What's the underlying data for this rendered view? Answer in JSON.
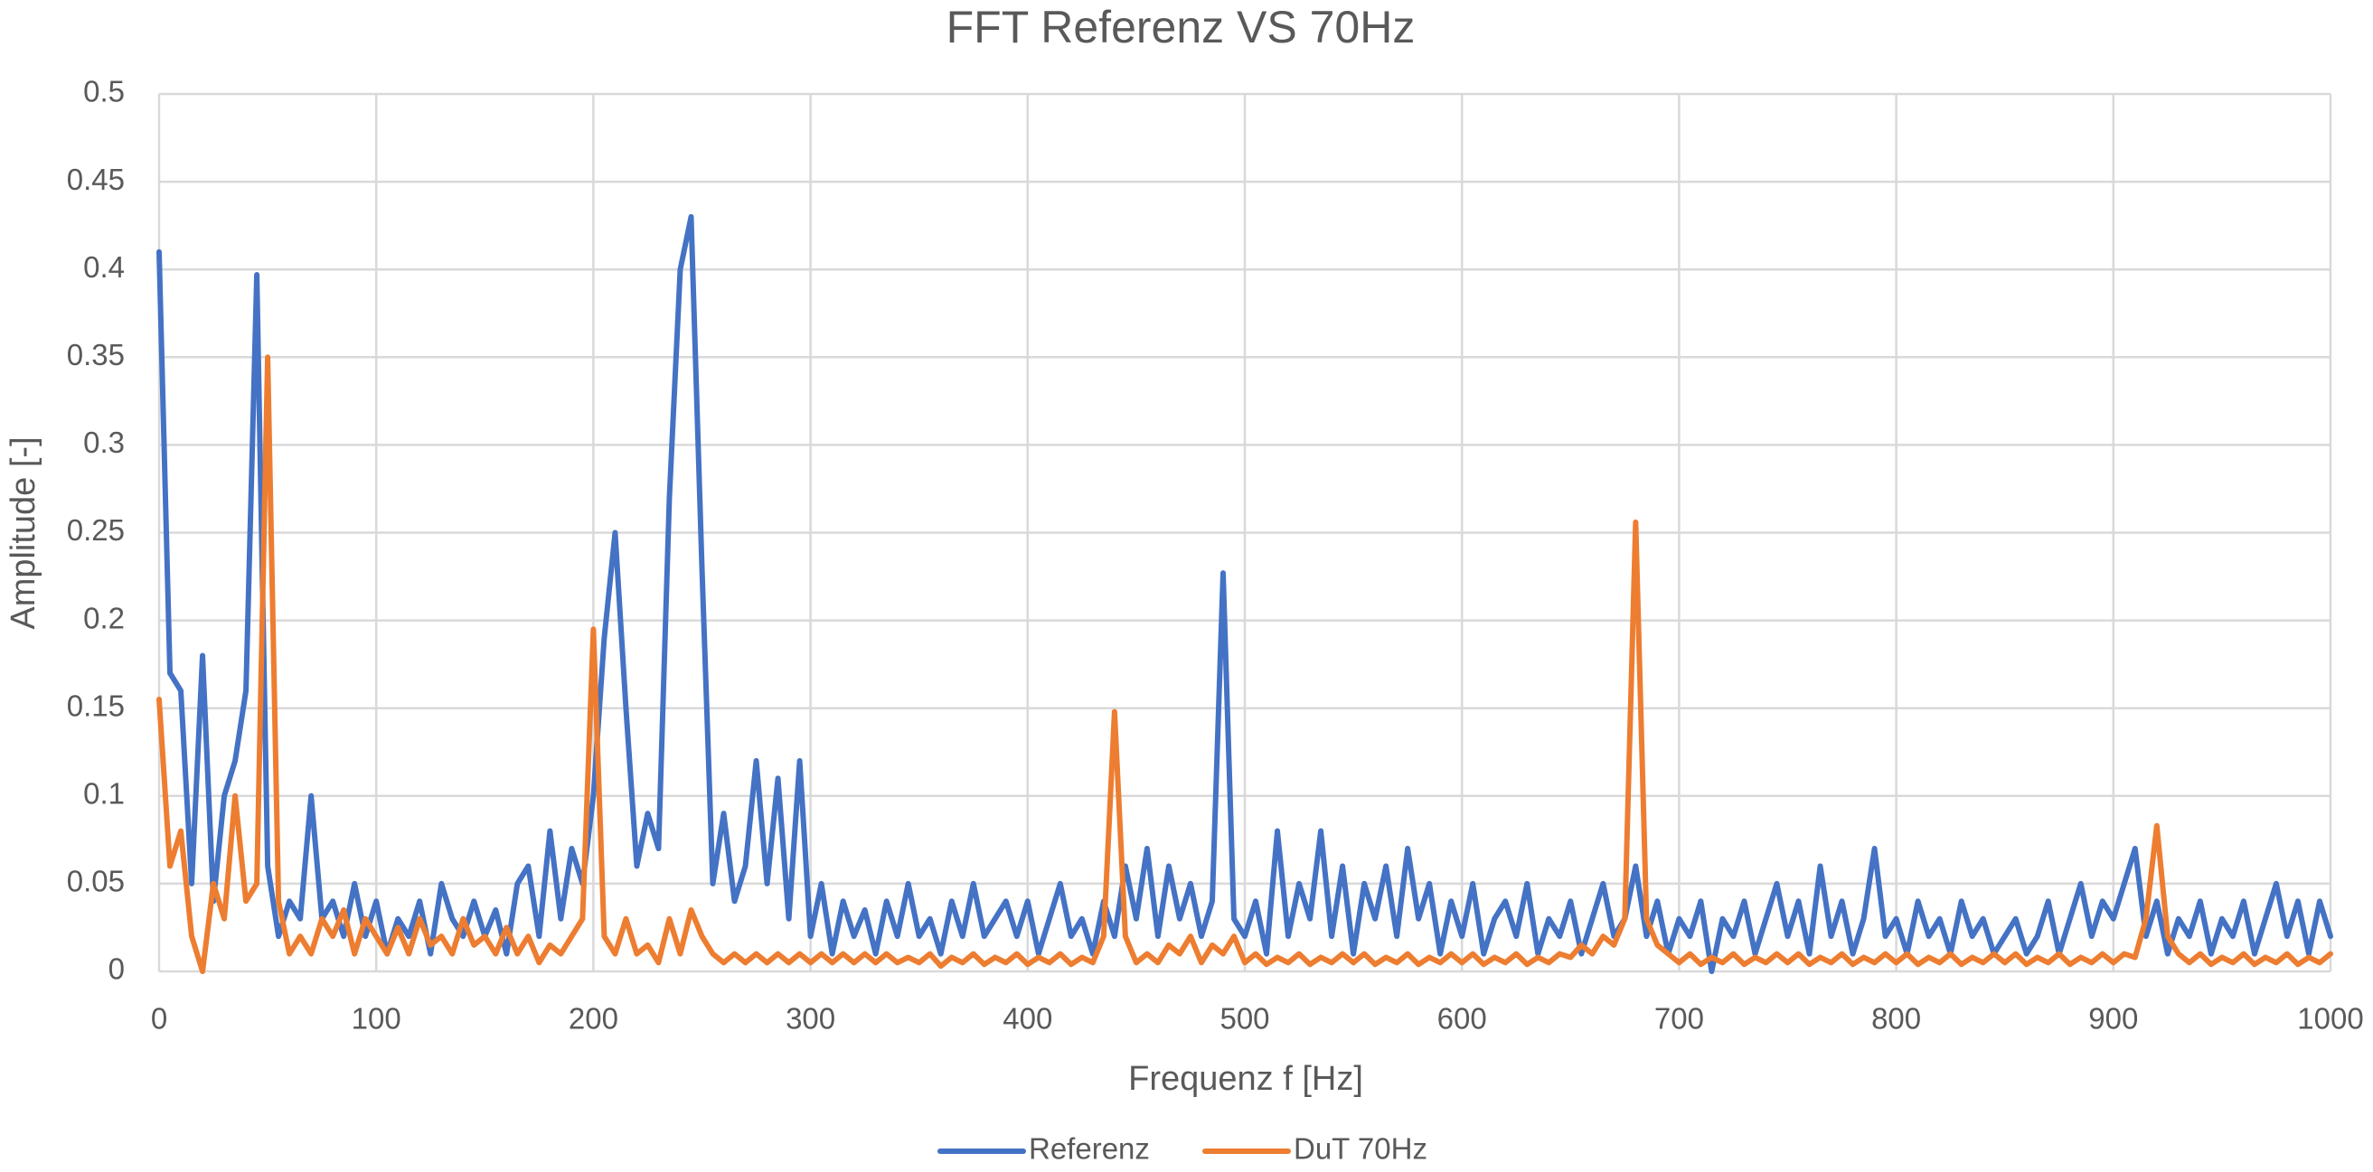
{
  "chart_data": {
    "type": "line",
    "title": "FFT Referenz VS 70Hz",
    "x_label": "Frequenz f [Hz]",
    "y_label": "Amplitude [-]",
    "xlim": [
      0,
      1000
    ],
    "xticks": [
      0,
      100,
      200,
      300,
      400,
      500,
      600,
      700,
      800,
      900,
      1000
    ],
    "ylim": [
      0,
      0.5
    ],
    "yticks": [
      0,
      0.05,
      0.1,
      0.15,
      0.2,
      0.25,
      0.3,
      0.35,
      0.4,
      0.45,
      0.5
    ],
    "grid": true,
    "legend": "bottom",
    "x": [
      0,
      5,
      10,
      15,
      20,
      25,
      30,
      35,
      40,
      45,
      50,
      55,
      60,
      65,
      70,
      75,
      80,
      85,
      90,
      95,
      100,
      105,
      110,
      115,
      120,
      125,
      130,
      135,
      140,
      145,
      150,
      155,
      160,
      165,
      170,
      175,
      180,
      185,
      190,
      195,
      200,
      205,
      210,
      215,
      220,
      225,
      230,
      235,
      240,
      245,
      250,
      255,
      260,
      265,
      270,
      275,
      280,
      285,
      290,
      295,
      300,
      305,
      310,
      315,
      320,
      325,
      330,
      335,
      340,
      345,
      350,
      355,
      360,
      365,
      370,
      375,
      380,
      385,
      390,
      395,
      400,
      405,
      410,
      415,
      420,
      425,
      430,
      435,
      440,
      445,
      450,
      455,
      460,
      465,
      470,
      475,
      480,
      485,
      490,
      495,
      500,
      505,
      510,
      515,
      520,
      525,
      530,
      535,
      540,
      545,
      550,
      555,
      560,
      565,
      570,
      575,
      580,
      585,
      590,
      595,
      600,
      605,
      610,
      615,
      620,
      625,
      630,
      635,
      640,
      645,
      650,
      655,
      660,
      665,
      670,
      675,
      680,
      685,
      690,
      695,
      700,
      705,
      710,
      715,
      720,
      725,
      730,
      735,
      740,
      745,
      750,
      755,
      760,
      765,
      770,
      775,
      780,
      785,
      790,
      795,
      800,
      805,
      810,
      815,
      820,
      825,
      830,
      835,
      840,
      845,
      850,
      855,
      860,
      865,
      870,
      875,
      880,
      885,
      890,
      895,
      900,
      905,
      910,
      915,
      920,
      925,
      930,
      935,
      940,
      945,
      950,
      955,
      960,
      965,
      970,
      975,
      980,
      985,
      990,
      995,
      1000
    ],
    "series": [
      {
        "name": "Referenz",
        "color": "#4472c4",
        "values": [
          0.41,
          0.17,
          0.16,
          0.05,
          0.18,
          0.04,
          0.1,
          0.12,
          0.16,
          0.397,
          0.06,
          0.02,
          0.04,
          0.03,
          0.1,
          0.03,
          0.04,
          0.02,
          0.05,
          0.02,
          0.04,
          0.01,
          0.03,
          0.02,
          0.04,
          0.01,
          0.05,
          0.03,
          0.02,
          0.04,
          0.02,
          0.035,
          0.01,
          0.05,
          0.06,
          0.02,
          0.08,
          0.03,
          0.07,
          0.05,
          0.1,
          0.19,
          0.25,
          0.15,
          0.06,
          0.09,
          0.07,
          0.27,
          0.4,
          0.43,
          0.23,
          0.05,
          0.09,
          0.04,
          0.06,
          0.12,
          0.05,
          0.11,
          0.03,
          0.12,
          0.02,
          0.05,
          0.01,
          0.04,
          0.02,
          0.035,
          0.01,
          0.04,
          0.02,
          0.05,
          0.02,
          0.03,
          0.01,
          0.04,
          0.02,
          0.05,
          0.02,
          0.03,
          0.04,
          0.02,
          0.04,
          0.01,
          0.03,
          0.05,
          0.02,
          0.03,
          0.01,
          0.04,
          0.02,
          0.06,
          0.03,
          0.07,
          0.02,
          0.06,
          0.03,
          0.05,
          0.02,
          0.04,
          0.227,
          0.03,
          0.02,
          0.04,
          0.01,
          0.08,
          0.02,
          0.05,
          0.03,
          0.08,
          0.02,
          0.06,
          0.01,
          0.05,
          0.03,
          0.06,
          0.02,
          0.07,
          0.03,
          0.05,
          0.01,
          0.04,
          0.02,
          0.05,
          0.01,
          0.03,
          0.04,
          0.02,
          0.05,
          0.01,
          0.03,
          0.02,
          0.04,
          0.01,
          0.03,
          0.05,
          0.02,
          0.03,
          0.06,
          0.02,
          0.04,
          0.01,
          0.03,
          0.02,
          0.04,
          0,
          0.03,
          0.02,
          0.04,
          0.01,
          0.03,
          0.05,
          0.02,
          0.04,
          0.01,
          0.06,
          0.02,
          0.04,
          0.01,
          0.03,
          0.07,
          0.02,
          0.03,
          0.01,
          0.04,
          0.02,
          0.03,
          0.01,
          0.04,
          0.02,
          0.03,
          0.01,
          0.02,
          0.03,
          0.01,
          0.02,
          0.04,
          0.01,
          0.03,
          0.05,
          0.02,
          0.04,
          0.03,
          0.05,
          0.07,
          0.02,
          0.04,
          0.01,
          0.03,
          0.02,
          0.04,
          0.01,
          0.03,
          0.02,
          0.04,
          0.01,
          0.03,
          0.05,
          0.02,
          0.04,
          0.01,
          0.04,
          0.02
        ]
      },
      {
        "name": "DuT 70Hz",
        "color": "#ed7d31",
        "values": [
          0.155,
          0.06,
          0.08,
          0.02,
          0,
          0.05,
          0.03,
          0.1,
          0.04,
          0.05,
          0.35,
          0.04,
          0.01,
          0.02,
          0.01,
          0.03,
          0.02,
          0.035,
          0.01,
          0.03,
          0.02,
          0.01,
          0.025,
          0.01,
          0.03,
          0.015,
          0.02,
          0.01,
          0.03,
          0.015,
          0.02,
          0.01,
          0.025,
          0.01,
          0.02,
          0.005,
          0.015,
          0.01,
          0.02,
          0.03,
          0.195,
          0.02,
          0.01,
          0.03,
          0.01,
          0.015,
          0.005,
          0.03,
          0.01,
          0.035,
          0.02,
          0.01,
          0.005,
          0.01,
          0.005,
          0.01,
          0.005,
          0.01,
          0.005,
          0.01,
          0.005,
          0.01,
          0.005,
          0.01,
          0.005,
          0.01,
          0.005,
          0.01,
          0.005,
          0.008,
          0.005,
          0.01,
          0.003,
          0.008,
          0.005,
          0.01,
          0.004,
          0.008,
          0.005,
          0.01,
          0.004,
          0.008,
          0.005,
          0.01,
          0.004,
          0.008,
          0.005,
          0.02,
          0.148,
          0.02,
          0.005,
          0.01,
          0.005,
          0.015,
          0.01,
          0.02,
          0.005,
          0.015,
          0.01,
          0.02,
          0.005,
          0.01,
          0.004,
          0.008,
          0.005,
          0.01,
          0.004,
          0.008,
          0.005,
          0.01,
          0.005,
          0.01,
          0.004,
          0.008,
          0.005,
          0.01,
          0.004,
          0.008,
          0.005,
          0.01,
          0.005,
          0.01,
          0.004,
          0.008,
          0.005,
          0.01,
          0.004,
          0.008,
          0.005,
          0.01,
          0.008,
          0.015,
          0.01,
          0.02,
          0.015,
          0.03,
          0.256,
          0.03,
          0.015,
          0.01,
          0.005,
          0.01,
          0.004,
          0.008,
          0.005,
          0.01,
          0.004,
          0.008,
          0.005,
          0.01,
          0.005,
          0.01,
          0.004,
          0.008,
          0.005,
          0.01,
          0.004,
          0.008,
          0.005,
          0.01,
          0.005,
          0.01,
          0.004,
          0.008,
          0.005,
          0.01,
          0.004,
          0.008,
          0.005,
          0.01,
          0.005,
          0.01,
          0.004,
          0.008,
          0.005,
          0.01,
          0.004,
          0.008,
          0.005,
          0.01,
          0.005,
          0.01,
          0.008,
          0.03,
          0.083,
          0.02,
          0.01,
          0.005,
          0.01,
          0.004,
          0.008,
          0.005,
          0.01,
          0.004,
          0.008,
          0.005,
          0.01,
          0.004,
          0.008,
          0.005,
          0.01
        ]
      }
    ]
  }
}
